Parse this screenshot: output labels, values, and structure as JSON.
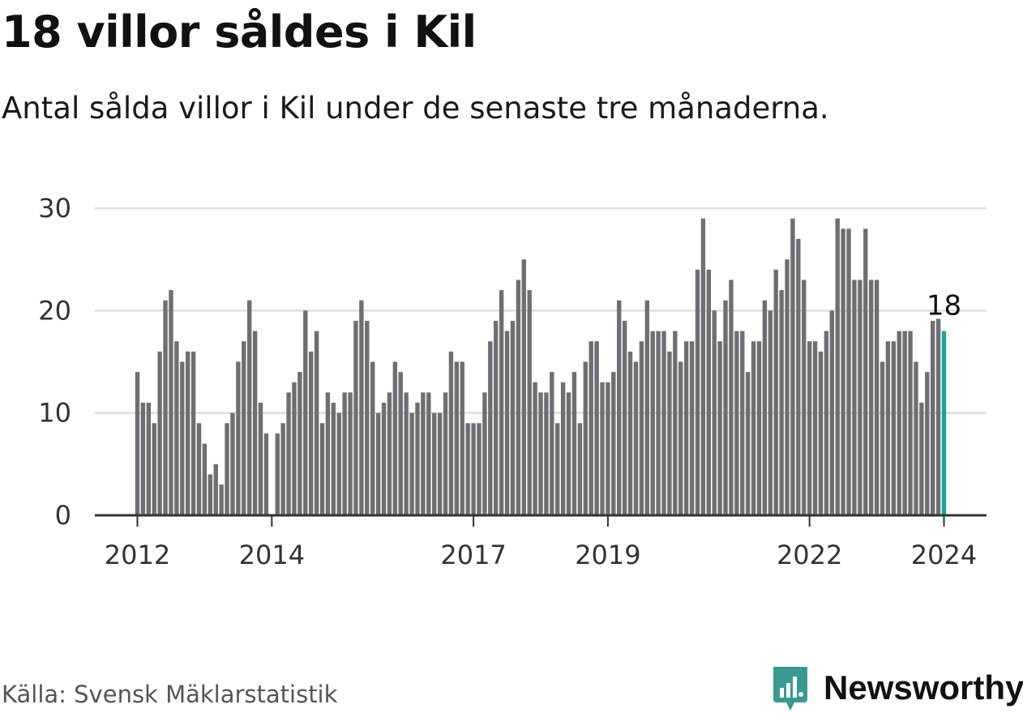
{
  "title": "18 villor såldes i Kil",
  "subtitle": "Antal sålda villor i Kil under de senaste tre månaderna.",
  "source": "Källa: Svensk Mäklarstatistik",
  "brand": "Newsworthy",
  "colors": {
    "bar": "#6e6e73",
    "highlight": "#1aa39a",
    "brand": "#3a9a93",
    "grid": "#dedede",
    "axis": "#333333"
  },
  "chart_data": {
    "type": "bar",
    "title": "18 villor såldes i Kil",
    "ylabel": "",
    "xlabel": "",
    "ylim": [
      0,
      30
    ],
    "yticks": [
      "0",
      "10",
      "20",
      "30"
    ],
    "start": "2012-01",
    "xticks": [
      {
        "label": "2012",
        "index": 0
      },
      {
        "label": "2014",
        "index": 24
      },
      {
        "label": "2017",
        "index": 60
      },
      {
        "label": "2019",
        "index": 84
      },
      {
        "label": "2022",
        "index": 120
      },
      {
        "label": "2024",
        "index": 144
      }
    ],
    "values": [
      14,
      11,
      11,
      9,
      16,
      21,
      22,
      17,
      15,
      16,
      16,
      9,
      7,
      4,
      5,
      3,
      9,
      10,
      15,
      17,
      21,
      18,
      11,
      8,
      0,
      8,
      9,
      12,
      13,
      14,
      20,
      16,
      18,
      9,
      12,
      11,
      10,
      12,
      12,
      19,
      21,
      19,
      15,
      10,
      11,
      12,
      15,
      14,
      12,
      10,
      11,
      12,
      12,
      10,
      10,
      12,
      16,
      15,
      15,
      9,
      9,
      9,
      12,
      17,
      19,
      22,
      18,
      19,
      23,
      25,
      22,
      13,
      12,
      12,
      14,
      9,
      13,
      12,
      14,
      9,
      15,
      17,
      17,
      13,
      13,
      14,
      21,
      19,
      16,
      15,
      17,
      21,
      18,
      18,
      18,
      16,
      18,
      15,
      17,
      17,
      24,
      29,
      24,
      20,
      17,
      21,
      23,
      18,
      18,
      14,
      17,
      17,
      21,
      20,
      24,
      22,
      25,
      29,
      27,
      23,
      17,
      17,
      16,
      18,
      20,
      29,
      28,
      28,
      23,
      23,
      28,
      23,
      23,
      15,
      17,
      17,
      18,
      18,
      18,
      15,
      11,
      14,
      19,
      19.2,
      18
    ],
    "highlight_index": 144,
    "highlight_label": "18"
  }
}
